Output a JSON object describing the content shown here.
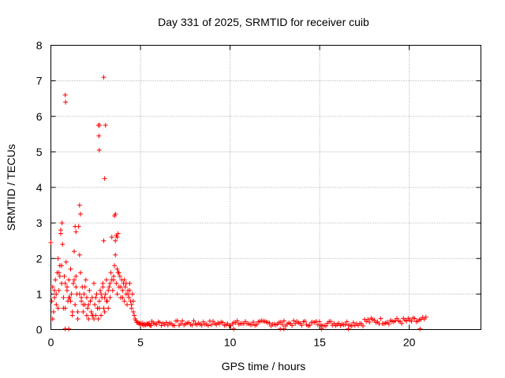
{
  "chart_data": {
    "type": "scatter",
    "title": "Day 331 of 2025, SRMTID for receiver cuib",
    "xlabel": "GPS time / hours",
    "ylabel": "SRMTID / TECUs",
    "xlim": [
      0,
      24
    ],
    "ylim": [
      0,
      8
    ],
    "x_ticks": [
      0,
      5,
      10,
      15,
      20
    ],
    "x_tick_labels": [
      "0",
      "5",
      "10",
      "15",
      "20"
    ],
    "y_ticks": [
      0,
      1,
      2,
      3,
      4,
      5,
      6,
      7,
      8
    ],
    "y_tick_labels": [
      "0",
      "1",
      "2",
      "3",
      "4",
      "5",
      "6",
      "7",
      "8"
    ],
    "grid": true,
    "marker": "+",
    "series_color": "#ff0000",
    "series": [
      {
        "name": "SRMTID",
        "description": "Scattered SRMTID values: high and variable (0-3.5 TECU, outliers up to 7.1) from 0 to ~4.8 h, then a steady low band near 0.1-0.25 TECU until ~21 h.",
        "x": [
          0.05,
          0.1,
          0.15,
          0.2,
          0.25,
          0.3,
          0.35,
          0.4,
          0.45,
          0.5,
          0.55,
          0.6,
          0.65,
          0.7,
          0.75,
          0.8,
          0.85,
          0.9,
          0.95,
          1.0,
          1.05,
          1.1,
          1.15,
          1.2,
          1.25,
          1.3,
          1.35,
          1.4,
          1.45,
          1.5,
          1.55,
          1.6,
          1.65,
          1.7,
          1.75,
          1.8,
          1.85,
          1.9,
          1.95,
          2.0,
          2.05,
          2.1,
          2.15,
          2.2,
          2.25,
          2.3,
          2.35,
          2.4,
          2.45,
          2.5,
          2.55,
          2.6,
          2.65,
          2.7,
          2.75,
          2.8,
          2.85,
          2.9,
          2.95,
          3.0,
          3.05,
          3.1,
          3.15,
          3.2,
          3.25,
          3.3,
          3.35,
          3.4,
          3.45,
          3.5,
          3.55,
          3.6,
          3.65,
          3.7,
          3.75,
          3.8,
          3.85,
          3.9,
          3.95,
          4.0,
          4.05,
          4.1,
          4.15,
          4.2,
          4.25,
          4.3,
          4.35,
          4.4,
          4.45,
          4.5,
          4.55,
          4.6,
          4.65,
          4.7,
          4.75,
          4.8,
          0.1,
          0.3,
          0.5,
          0.7,
          0.9,
          1.1,
          1.3,
          1.5,
          1.7,
          1.9,
          2.1,
          2.3,
          2.5,
          2.7,
          2.9,
          3.1,
          3.3,
          3.5,
          3.7,
          3.9,
          4.1,
          4.3,
          4.5,
          0.2,
          0.4,
          0.6,
          0.8,
          1.0,
          1.2,
          1.4,
          1.6,
          1.8,
          2.0,
          2.2,
          2.4,
          2.6,
          2.8,
          3.0,
          3.2,
          3.4,
          3.6,
          3.8,
          4.0,
          4.2,
          4.4,
          4.6,
          0.0,
          0.45,
          0.55,
          0.62,
          0.8,
          0.82,
          1.35,
          1.4,
          1.6,
          1.65,
          2.65,
          2.68,
          2.7,
          2.72,
          2.95,
          3.0,
          3.05,
          3.55,
          3.6,
          3.65,
          3.7,
          3.75,
          2.95,
          4.85,
          4.9,
          4.95,
          5.0,
          5.1,
          5.2,
          5.3,
          5.4,
          5.5,
          5.6
        ],
        "y": [
          0.8,
          1.2,
          0.5,
          0.9,
          1.4,
          0.7,
          1.6,
          2.0,
          1.1,
          1.8,
          2.7,
          1.3,
          2.4,
          0.9,
          1.5,
          0.6,
          1.9,
          1.2,
          0.8,
          1.4,
          0.9,
          1.7,
          1.0,
          0.4,
          1.3,
          2.2,
          0.7,
          1.5,
          1.0,
          0.3,
          2.9,
          2.1,
          1.6,
          0.8,
          1.2,
          0.5,
          1.0,
          0.7,
          1.4,
          0.9,
          0.6,
          0.3,
          1.1,
          0.8,
          0.5,
          0.9,
          0.4,
          1.3,
          0.7,
          0.4,
          1.0,
          0.6,
          0.3,
          0.8,
          1.1,
          0.4,
          0.9,
          1.3,
          0.6,
          0.5,
          1.0,
          1.4,
          0.8,
          0.6,
          1.2,
          0.9,
          1.6,
          2.6,
          1.1,
          1.4,
          1.8,
          2.5,
          1.3,
          1.0,
          1.6,
          1.2,
          1.5,
          0.9,
          1.4,
          1.1,
          1.3,
          0.8,
          1.2,
          1.0,
          0.7,
          1.1,
          0.9,
          1.3,
          0.8,
          0.6,
          1.0,
          0.5,
          0.4,
          0.3,
          0.25,
          0.2,
          0.3,
          1.0,
          1.5,
          0.6,
          1.1,
          0.8,
          1.4,
          0.5,
          0.9,
          1.2,
          0.7,
          0.4,
          0.9,
          0.6,
          1.2,
          0.8,
          1.3,
          1.5,
          1.7,
          1.2,
          1.4,
          1.0,
          0.7,
          1.1,
          0.6,
          1.8,
          1.3,
          0.9,
          0.5,
          1.2,
          1.0,
          0.7,
          0.4,
          0.8,
          0.3,
          0.6,
          1.0,
          0.9,
          1.1,
          1.4,
          2.1,
          1.6,
          0.9,
          1.3,
          1.1,
          0.8,
          2.45,
          1.6,
          2.8,
          3.0,
          6.6,
          6.4,
          2.9,
          2.75,
          3.5,
          3.25,
          5.75,
          5.45,
          5.05,
          5.75,
          7.1,
          4.25,
          5.75,
          3.2,
          3.25,
          2.65,
          2.6,
          2.7,
          2.5,
          0.2,
          0.18,
          0.17,
          0.15,
          0.14,
          0.16,
          0.13,
          0.15,
          0.14,
          0.12
        ],
        "band": {
          "x_start": 5.0,
          "x_end": 21.0,
          "y_low": 0.1,
          "y_high": 0.25,
          "y_end_rise": 0.35,
          "zero_points_x": [
            0.8,
            1.0,
            10.2,
            12.8,
            13.0,
            15.1,
            16.6,
            20.6
          ]
        }
      }
    ]
  }
}
